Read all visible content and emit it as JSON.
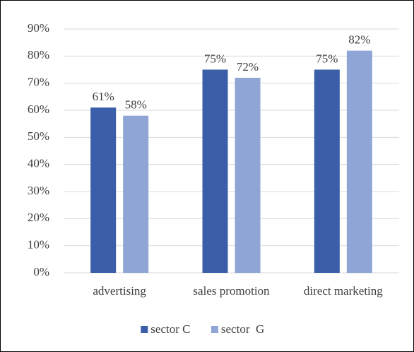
{
  "chart_data": {
    "type": "bar",
    "categories": [
      "advertising",
      "sales promotion",
      "direct marketing"
    ],
    "series": [
      {
        "name": "sector C",
        "color": "#3b5ea9",
        "values": [
          61,
          75,
          75
        ],
        "value_labels": [
          "61%",
          "75%",
          "75%"
        ]
      },
      {
        "name": "sector  G",
        "color": "#8fa5d5",
        "values": [
          58,
          72,
          82
        ],
        "value_labels": [
          "58%",
          "72%",
          "82%"
        ]
      }
    ],
    "ylim": [
      0,
      90
    ],
    "yticks": [
      {
        "value": 0,
        "label": "0%"
      },
      {
        "value": 10,
        "label": "10%"
      },
      {
        "value": 20,
        "label": "20%"
      },
      {
        "value": 30,
        "label": "30%"
      },
      {
        "value": 40,
        "label": "40%"
      },
      {
        "value": 50,
        "label": "50%"
      },
      {
        "value": 60,
        "label": "60%"
      },
      {
        "value": 70,
        "label": "70%"
      },
      {
        "value": 80,
        "label": "80%"
      },
      {
        "value": 90,
        "label": "90%"
      }
    ],
    "grid": true,
    "legend": "bottom"
  }
}
